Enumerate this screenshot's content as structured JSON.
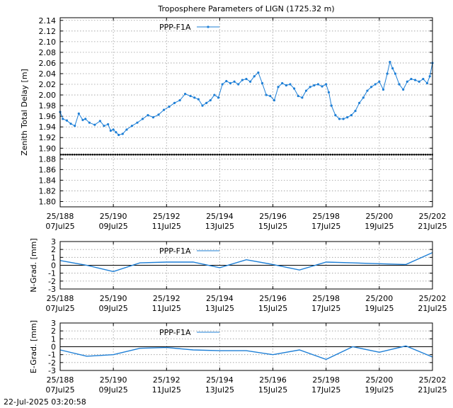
{
  "footer": {
    "timestamp": "22-Jul-2025 03:20:58"
  },
  "chart_data": [
    {
      "type": "line",
      "title": "Troposphere Parameters of LIGN (1725.32 m)",
      "ylabel": "Zenith Total Delay [m]",
      "xlabel": "",
      "xlim": [
        188,
        202
      ],
      "ylim": [
        1.79,
        2.145
      ],
      "yticks": [
        1.8,
        1.82,
        1.84,
        1.86,
        1.88,
        1.9,
        1.92,
        1.94,
        1.96,
        1.98,
        2.0,
        2.02,
        2.04,
        2.06,
        2.08,
        2.1,
        2.12,
        2.14
      ],
      "xticks": [
        {
          "value": 188,
          "label1": "25/188",
          "label2": "07Jul25"
        },
        {
          "value": 190,
          "label1": "25/190",
          "label2": "09Jul25"
        },
        {
          "value": 192,
          "label1": "25/192",
          "label2": "11Jul25"
        },
        {
          "value": 194,
          "label1": "25/194",
          "label2": "13Jul25"
        },
        {
          "value": 196,
          "label1": "25/196",
          "label2": "15Jul25"
        },
        {
          "value": 198,
          "label1": "25/198",
          "label2": "17Jul25"
        },
        {
          "value": 200,
          "label1": "25/200",
          "label2": "19Jul25"
        },
        {
          "value": 202,
          "label1": "25/202",
          "label2": "21Jul25"
        }
      ],
      "grid": true,
      "legend": "top-left",
      "baseline": {
        "y": 1.888,
        "color": "#000000"
      },
      "series": [
        {
          "name": "PPP-F1A",
          "color": "#1e7fd6",
          "marker": "dot",
          "x": [
            188.0,
            188.1,
            188.25,
            188.4,
            188.55,
            188.7,
            188.85,
            188.95,
            189.1,
            189.3,
            189.5,
            189.65,
            189.8,
            189.9,
            190.0,
            190.1,
            190.2,
            190.35,
            190.5,
            190.7,
            190.9,
            191.1,
            191.3,
            191.5,
            191.7,
            191.9,
            192.1,
            192.3,
            192.5,
            192.7,
            192.9,
            193.05,
            193.2,
            193.35,
            193.5,
            193.65,
            193.8,
            193.95,
            194.1,
            194.25,
            194.4,
            194.55,
            194.7,
            194.85,
            195.0,
            195.15,
            195.3,
            195.45,
            195.6,
            195.75,
            195.9,
            196.05,
            196.2,
            196.35,
            196.5,
            196.65,
            196.8,
            196.95,
            197.1,
            197.25,
            197.4,
            197.55,
            197.7,
            197.85,
            198.0,
            198.1,
            198.2,
            198.35,
            198.5,
            198.65,
            198.8,
            198.95,
            199.1,
            199.25,
            199.4,
            199.55,
            199.7,
            199.85,
            200.0,
            200.15,
            200.3,
            200.4,
            200.5,
            200.6,
            200.75,
            200.9,
            201.05,
            201.2,
            201.35,
            201.5,
            201.65,
            201.8,
            201.9,
            202.0
          ],
          "y": [
            1.968,
            1.955,
            1.952,
            1.946,
            1.942,
            1.965,
            1.953,
            1.955,
            1.948,
            1.944,
            1.951,
            1.942,
            1.945,
            1.933,
            1.935,
            1.93,
            1.925,
            1.927,
            1.935,
            1.942,
            1.948,
            1.955,
            1.962,
            1.958,
            1.963,
            1.972,
            1.978,
            1.985,
            1.99,
            2.002,
            1.998,
            1.995,
            1.992,
            1.98,
            1.985,
            1.99,
            2.0,
            1.995,
            2.02,
            2.026,
            2.022,
            2.025,
            2.02,
            2.028,
            2.03,
            2.025,
            2.035,
            2.042,
            2.022,
            2.0,
            1.998,
            1.99,
            2.015,
            2.022,
            2.018,
            2.02,
            2.012,
            1.998,
            1.995,
            2.008,
            2.015,
            2.018,
            2.02,
            2.016,
            2.02,
            2.005,
            1.98,
            1.962,
            1.955,
            1.955,
            1.958,
            1.962,
            1.97,
            1.985,
            1.995,
            2.008,
            2.015,
            2.02,
            2.025,
            2.01,
            2.04,
            2.062,
            2.05,
            2.04,
            2.02,
            2.01,
            2.025,
            2.03,
            2.028,
            2.025,
            2.03,
            2.022,
            2.035,
            2.06
          ]
        }
      ]
    },
    {
      "type": "line",
      "title": "",
      "ylabel": "N-Grad. [mm]",
      "xlabel": "",
      "xlim": [
        188,
        202
      ],
      "ylim": [
        -3,
        3
      ],
      "yticks": [
        -3,
        -2,
        -1,
        0,
        1,
        2,
        3
      ],
      "xticks": [
        {
          "value": 188,
          "label1": "25/188",
          "label2": "07Jul25"
        },
        {
          "value": 190,
          "label1": "25/190",
          "label2": "09Jul25"
        },
        {
          "value": 192,
          "label1": "25/192",
          "label2": "11Jul25"
        },
        {
          "value": 194,
          "label1": "25/194",
          "label2": "13Jul25"
        },
        {
          "value": 196,
          "label1": "25/196",
          "label2": "15Jul25"
        },
        {
          "value": 198,
          "label1": "25/198",
          "label2": "17Jul25"
        },
        {
          "value": 200,
          "label1": "25/200",
          "label2": "19Jul25"
        },
        {
          "value": 202,
          "label1": "25/202",
          "label2": "21Jul25"
        }
      ],
      "grid": true,
      "legend": "top-left",
      "baseline": {
        "y": 0,
        "color": "#000000"
      },
      "series": [
        {
          "name": "PPP-F1A",
          "color": "#1e7fd6",
          "marker": "none",
          "x": [
            188,
            189,
            190,
            191,
            192,
            193,
            194,
            195,
            196,
            197,
            198,
            199,
            200,
            201,
            202
          ],
          "y": [
            0.6,
            0.0,
            -0.8,
            0.3,
            0.4,
            0.4,
            -0.3,
            0.7,
            0.1,
            -0.6,
            0.4,
            0.3,
            0.2,
            0.1,
            1.6
          ]
        }
      ]
    },
    {
      "type": "line",
      "title": "",
      "ylabel": "E-Grad. [mm]",
      "xlabel": "",
      "xlim": [
        188,
        202
      ],
      "ylim": [
        -3,
        3
      ],
      "yticks": [
        -3,
        -2,
        -1,
        0,
        1,
        2,
        3
      ],
      "xticks": [
        {
          "value": 188,
          "label1": "25/188",
          "label2": "07Jul25"
        },
        {
          "value": 190,
          "label1": "25/190",
          "label2": "09Jul25"
        },
        {
          "value": 192,
          "label1": "25/192",
          "label2": "11Jul25"
        },
        {
          "value": 194,
          "label1": "25/194",
          "label2": "13Jul25"
        },
        {
          "value": 196,
          "label1": "25/196",
          "label2": "15Jul25"
        },
        {
          "value": 198,
          "label1": "25/198",
          "label2": "17Jul25"
        },
        {
          "value": 200,
          "label1": "25/200",
          "label2": "19Jul25"
        },
        {
          "value": 202,
          "label1": "25/202",
          "label2": "21Jul25"
        }
      ],
      "grid": true,
      "legend": "top-left",
      "baseline": {
        "y": 0,
        "color": "#000000"
      },
      "series": [
        {
          "name": "PPP-F1A",
          "color": "#1e7fd6",
          "marker": "none",
          "x": [
            188,
            189,
            190,
            191,
            192,
            193,
            194,
            195,
            196,
            197,
            198,
            199,
            200,
            201,
            202
          ],
          "y": [
            -0.4,
            -1.2,
            -1.0,
            -0.2,
            -0.1,
            -0.4,
            -0.5,
            -0.5,
            -1.0,
            -0.4,
            -1.6,
            0.0,
            -0.7,
            0.1,
            -1.3
          ]
        }
      ]
    }
  ]
}
